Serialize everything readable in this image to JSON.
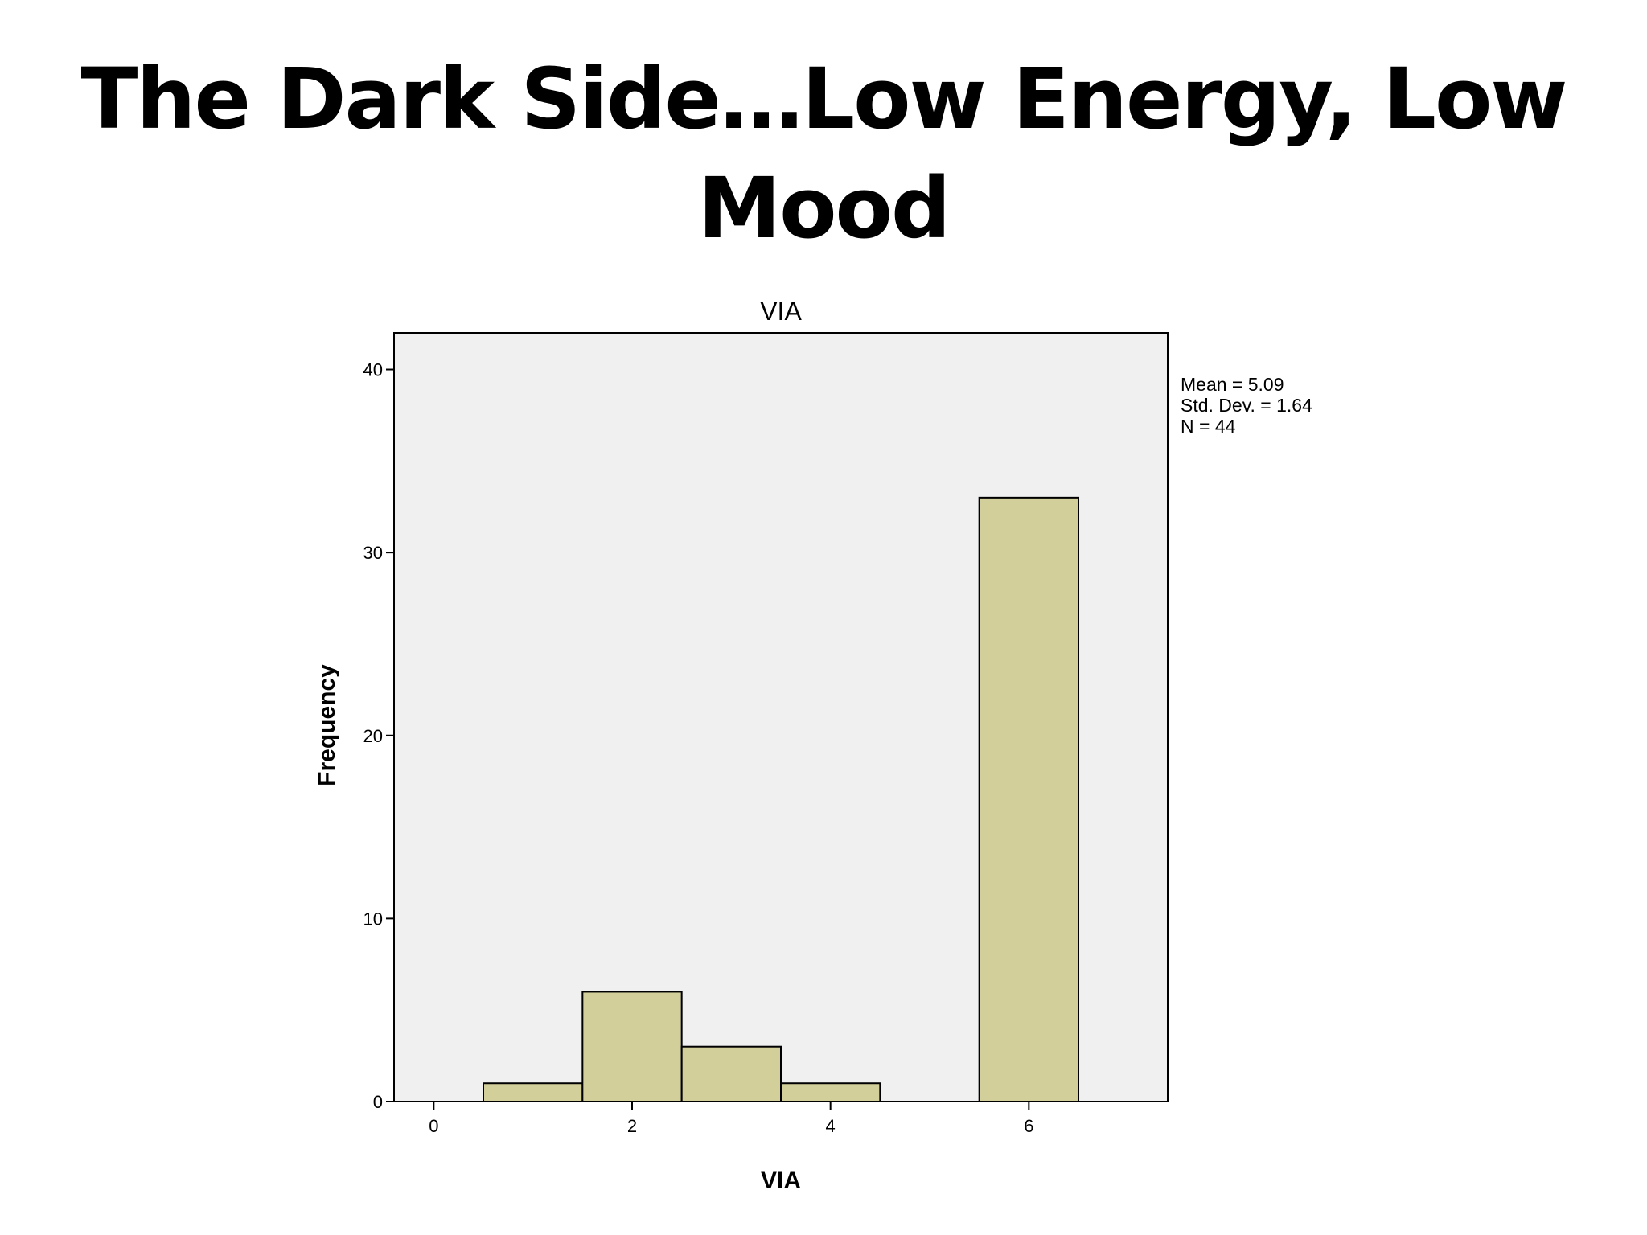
{
  "slide": {
    "title_line1": "The Dark Side…Low Energy, Low",
    "title_line2": "Mood"
  },
  "chart_data": {
    "type": "bar",
    "title": "VIA",
    "xlabel": "VIA",
    "ylabel": "Frequency",
    "xlim": [
      -0.4,
      7.4
    ],
    "ylim": [
      0,
      42
    ],
    "x_ticks": [
      "0",
      "2",
      "4",
      "6"
    ],
    "y_ticks": [
      "0",
      "10",
      "20",
      "30",
      "40"
    ],
    "bins": [
      {
        "x0": 0.5,
        "x1": 1.5,
        "value": 1
      },
      {
        "x0": 1.5,
        "x1": 2.5,
        "value": 6
      },
      {
        "x0": 2.5,
        "x1": 3.5,
        "value": 3
      },
      {
        "x0": 3.5,
        "x1": 4.5,
        "value": 1
      },
      {
        "x0": 5.5,
        "x1": 6.5,
        "value": 33
      }
    ],
    "stats": [
      "Mean = 5.09",
      "Std. Dev. = 1.64",
      "N = 44"
    ],
    "colors": {
      "bar_fill": "#d3cf9b",
      "plot_bg": "#f0f0f0",
      "stroke": "#000000"
    },
    "grid": false
  }
}
